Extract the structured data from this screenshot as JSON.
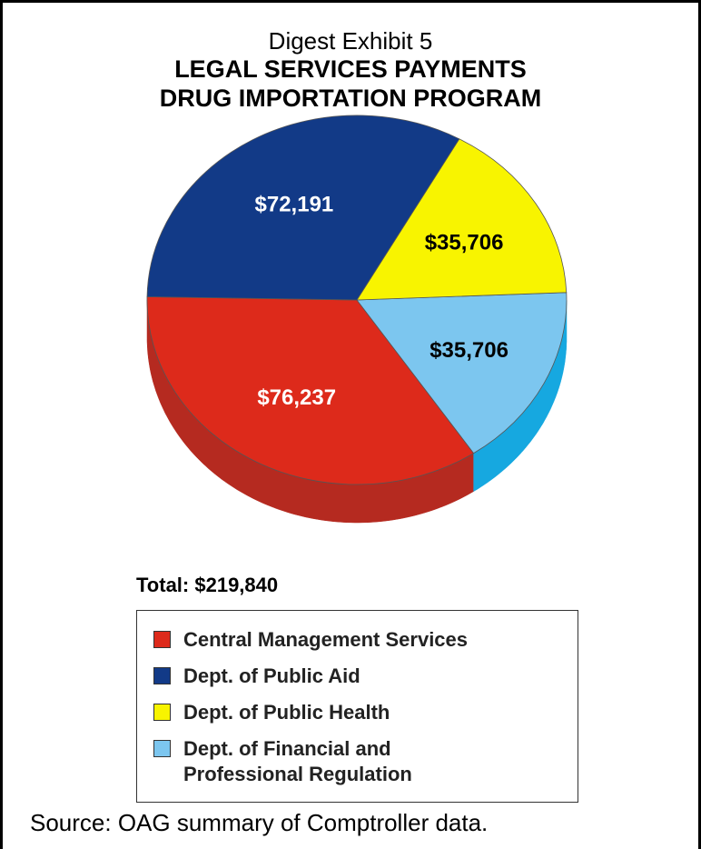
{
  "header": {
    "subtitle": "Digest Exhibit 5",
    "title_line1": "LEGAL SERVICES PAYMENTS",
    "title_line2": "DRUG IMPORTATION PROGRAM"
  },
  "chart_data": {
    "type": "pie",
    "title": "LEGAL SERVICES PAYMENTS DRUG IMPORTATION PROGRAM",
    "slices": [
      {
        "name": "Central Management Services",
        "value": 76237,
        "label": "$76,237",
        "color": "#dd2a1b",
        "side_color": "#b52a20",
        "label_color": "#ffffff"
      },
      {
        "name": "Dept. of Public Aid",
        "value": 72191,
        "label": "$72,191",
        "color": "#123a87",
        "side_color": "#0c2a66",
        "label_color": "#ffffff"
      },
      {
        "name": "Dept. of Public Health",
        "value": 35706,
        "label": "$35,706",
        "color": "#f8f400",
        "side_color": "#c9c400",
        "label_color": "#000000"
      },
      {
        "name": "Dept. of Financial and Professional Regulation",
        "value": 35706,
        "label": "$35,706",
        "color": "#7cc6ef",
        "side_color": "#16a8e0",
        "label_color": "#000000"
      }
    ],
    "total_label": "Total: $219,840"
  },
  "legend": {
    "items": [
      {
        "lines": [
          "Central Management Services"
        ],
        "color": "#dd2a1b"
      },
      {
        "lines": [
          "Dept. of Public Aid"
        ],
        "color": "#123a87"
      },
      {
        "lines": [
          "Dept. of Public Health"
        ],
        "color": "#f8f400"
      },
      {
        "lines": [
          "Dept. of Financial and",
          "Professional Regulation"
        ],
        "color": "#7cc6ef"
      }
    ]
  },
  "source": "Source:  OAG summary of Comptroller data."
}
